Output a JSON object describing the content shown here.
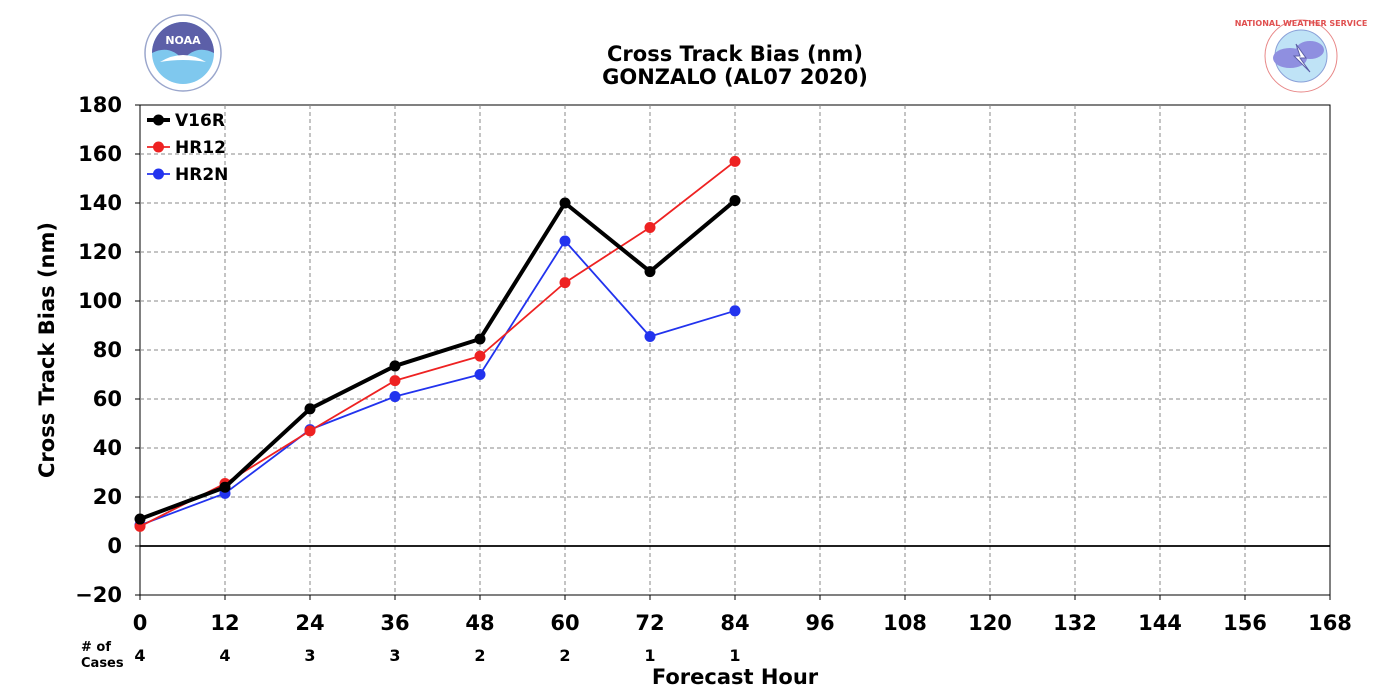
{
  "chart_data": {
    "type": "line",
    "title": "Cross Track Bias (nm)",
    "subtitle": "GONZALO (AL07 2020)",
    "xlabel": "Forecast Hour",
    "ylabel": "Cross Track Bias (nm)",
    "xlim": [
      0,
      168
    ],
    "ylim": [
      -20,
      180
    ],
    "x_ticks": [
      "0",
      "12",
      "24",
      "36",
      "48",
      "60",
      "72",
      "84",
      "96",
      "108",
      "120",
      "132",
      "144",
      "156",
      "168"
    ],
    "y_ticks": [
      "180",
      "160",
      "140",
      "120",
      "100",
      "80",
      "60",
      "40",
      "20",
      "0",
      "−20"
    ],
    "grid": true,
    "legend_position": "top-left",
    "x": [
      0,
      12,
      24,
      36,
      48,
      60,
      72,
      84
    ],
    "series": [
      {
        "name": "V16R",
        "color": "#000000",
        "values": [
          11,
          24,
          56,
          73.5,
          84.5,
          140,
          112,
          141
        ]
      },
      {
        "name": "HR12",
        "color": "#ee2222",
        "values": [
          8,
          25.5,
          47,
          67.5,
          77.5,
          107.5,
          130,
          157
        ]
      },
      {
        "name": "HR2N",
        "color": "#2233ee",
        "values": [
          8.5,
          21.5,
          47.5,
          61,
          70,
          124.5,
          85.5,
          96
        ]
      }
    ],
    "cases_label_line1": "# of",
    "cases_label_line2": "Cases",
    "cases": [
      "4",
      "4",
      "3",
      "3",
      "2",
      "2",
      "1",
      "1"
    ]
  },
  "logos": {
    "left": {
      "name": "noaa-logo",
      "text": "NOAA"
    },
    "right": {
      "name": "nws-logo",
      "text": "NATIONAL WEATHER SERVICE"
    }
  }
}
